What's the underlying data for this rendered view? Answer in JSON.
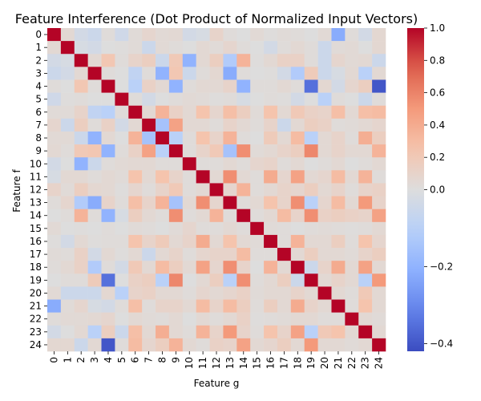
{
  "chart_data": {
    "type": "heatmap",
    "title": "Feature Interference (Dot Product of Normalized Input Vectors)",
    "xlabel": "Feature g",
    "ylabel": "Feature f",
    "x_categories": [
      "0",
      "1",
      "2",
      "3",
      "4",
      "5",
      "6",
      "7",
      "8",
      "9",
      "10",
      "11",
      "12",
      "13",
      "14",
      "15",
      "16",
      "17",
      "18",
      "19",
      "20",
      "21",
      "22",
      "23",
      "24"
    ],
    "y_categories": [
      "0",
      "1",
      "2",
      "3",
      "4",
      "5",
      "6",
      "7",
      "8",
      "9",
      "10",
      "11",
      "12",
      "13",
      "14",
      "15",
      "16",
      "17",
      "18",
      "19",
      "20",
      "21",
      "22",
      "23",
      "24"
    ],
    "colormap": "coolwarm",
    "vmin": -0.42,
    "vmax": 1.0,
    "colorbar_ticks": [
      1.0,
      0.8,
      0.6,
      0.4,
      0.2,
      0.0,
      -0.2,
      -0.4
    ],
    "colorbar_tick_labels": [
      "1.0",
      "0.8",
      "0.6",
      "0.4",
      "0.2",
      "0.0",
      "−0.2",
      "−0.4"
    ],
    "values": [
      [
        1.0,
        0.05,
        -0.03,
        -0.05,
        0.02,
        -0.04,
        0.03,
        0.08,
        0.04,
        0.05,
        -0.03,
        -0.02,
        0.1,
        0.02,
        0.0,
        0.04,
        0.01,
        0.03,
        0.02,
        0.0,
        0.04,
        -0.22,
        0.02,
        -0.03,
        0.06
      ],
      [
        0.05,
        1.0,
        -0.02,
        -0.03,
        0.0,
        0.01,
        0.03,
        -0.05,
        0.04,
        0.02,
        0.0,
        0.05,
        0.03,
        0.08,
        0.02,
        0.0,
        -0.03,
        0.02,
        0.05,
        0.02,
        -0.05,
        0.03,
        0.04,
        0.0,
        0.06
      ],
      [
        -0.03,
        -0.02,
        1.0,
        0.05,
        0.22,
        0.02,
        0.1,
        0.15,
        -0.05,
        0.2,
        -0.2,
        0.05,
        0.15,
        -0.12,
        0.35,
        0.01,
        0.05,
        0.12,
        0.12,
        0.02,
        -0.05,
        0.08,
        0.04,
        0.05,
        -0.05
      ],
      [
        -0.05,
        -0.03,
        0.05,
        1.0,
        0.02,
        0.0,
        -0.08,
        0.02,
        -0.2,
        0.22,
        -0.05,
        0.02,
        0.06,
        -0.22,
        0.02,
        0.0,
        0.01,
        -0.03,
        -0.12,
        0.18,
        -0.05,
        -0.02,
        0.05,
        -0.1,
        0.05
      ],
      [
        0.02,
        0.0,
        0.22,
        0.02,
        1.0,
        0.0,
        -0.1,
        0.12,
        0.05,
        -0.2,
        0.02,
        0.05,
        0.05,
        0.1,
        -0.2,
        0.02,
        0.02,
        0.05,
        0.02,
        -0.35,
        0.06,
        -0.03,
        0.08,
        0.15,
        -0.4
      ],
      [
        -0.04,
        0.01,
        0.02,
        0.0,
        0.0,
        1.0,
        0.02,
        -0.03,
        0.0,
        0.02,
        0.04,
        0.03,
        0.01,
        0.02,
        -0.02,
        0.0,
        0.02,
        0.01,
        -0.03,
        0.0,
        -0.1,
        0.02,
        0.0,
        -0.05,
        0.02
      ],
      [
        0.03,
        0.03,
        0.1,
        -0.08,
        -0.1,
        0.02,
        1.0,
        0.05,
        0.35,
        0.12,
        0.05,
        0.25,
        0.08,
        0.28,
        0.15,
        0.03,
        0.25,
        0.05,
        0.2,
        0.12,
        0.1,
        0.28,
        0.05,
        0.28,
        0.3
      ],
      [
        0.08,
        -0.05,
        0.15,
        0.02,
        0.12,
        -0.03,
        0.05,
        1.0,
        -0.15,
        0.45,
        0.05,
        0.05,
        0.02,
        0.1,
        0.05,
        0.02,
        0.1,
        -0.05,
        0.05,
        0.15,
        0.12,
        0.02,
        0.03,
        0.05,
        0.08
      ],
      [
        0.04,
        0.04,
        -0.05,
        -0.2,
        0.05,
        0.0,
        0.35,
        -0.15,
        1.0,
        -0.1,
        0.02,
        0.25,
        0.1,
        0.35,
        0.02,
        0.0,
        0.18,
        0.05,
        0.3,
        -0.1,
        0.05,
        0.1,
        0.02,
        0.38,
        0.15
      ],
      [
        0.05,
        0.02,
        0.2,
        0.22,
        -0.2,
        0.02,
        0.12,
        0.45,
        -0.1,
        1.0,
        0.02,
        0.1,
        0.2,
        -0.15,
        0.55,
        0.03,
        0.05,
        0.1,
        0.15,
        0.58,
        0.05,
        0.1,
        0.05,
        0.05,
        0.35
      ],
      [
        -0.03,
        0.0,
        -0.2,
        -0.05,
        0.02,
        0.04,
        0.05,
        0.05,
        0.02,
        0.02,
        1.0,
        0.02,
        0.02,
        0.05,
        0.02,
        0.08,
        0.1,
        0.02,
        0.05,
        0.0,
        0.02,
        0.05,
        0.0,
        0.02,
        0.05
      ],
      [
        -0.02,
        0.05,
        0.05,
        0.02,
        0.05,
        0.03,
        0.25,
        0.05,
        0.25,
        0.1,
        0.02,
        1.0,
        0.05,
        0.55,
        0.05,
        0.02,
        0.4,
        0.08,
        0.45,
        0.05,
        0.08,
        0.3,
        0.05,
        0.35,
        0.02
      ],
      [
        0.1,
        0.03,
        0.15,
        0.06,
        0.05,
        0.01,
        0.08,
        0.02,
        0.1,
        0.2,
        0.02,
        0.05,
        1.0,
        0.08,
        0.35,
        0.02,
        0.05,
        0.1,
        0.08,
        0.15,
        0.05,
        0.1,
        0.02,
        0.1,
        0.12
      ],
      [
        0.02,
        0.08,
        -0.12,
        -0.22,
        0.1,
        0.02,
        0.28,
        0.1,
        0.35,
        -0.15,
        0.05,
        0.55,
        0.08,
        1.0,
        0.02,
        0.05,
        0.25,
        0.1,
        0.55,
        -0.1,
        0.08,
        0.3,
        0.05,
        0.5,
        0.1
      ],
      [
        0.0,
        0.02,
        0.35,
        0.02,
        -0.2,
        -0.02,
        0.15,
        0.05,
        0.02,
        0.55,
        0.02,
        0.05,
        0.35,
        0.02,
        1.0,
        0.02,
        0.05,
        0.3,
        0.1,
        0.55,
        0.12,
        0.15,
        0.12,
        0.1,
        0.45
      ],
      [
        0.04,
        0.0,
        0.01,
        0.0,
        0.02,
        0.0,
        0.03,
        0.02,
        0.0,
        0.03,
        0.08,
        0.02,
        0.02,
        0.05,
        0.02,
        1.0,
        0.03,
        0.02,
        0.0,
        0.02,
        0.03,
        0.02,
        0.01,
        0.02,
        0.05
      ],
      [
        0.01,
        -0.03,
        0.05,
        0.01,
        0.02,
        0.02,
        0.25,
        0.1,
        0.18,
        0.05,
        0.1,
        0.4,
        0.05,
        0.25,
        0.05,
        0.03,
        1.0,
        0.02,
        0.35,
        0.05,
        0.05,
        0.15,
        0.02,
        0.25,
        0.08
      ],
      [
        0.03,
        0.02,
        0.12,
        -0.03,
        0.05,
        0.01,
        0.05,
        -0.05,
        0.05,
        0.1,
        0.02,
        0.08,
        0.1,
        0.1,
        0.3,
        0.02,
        0.02,
        1.0,
        0.05,
        0.15,
        0.05,
        0.05,
        0.03,
        0.1,
        0.15
      ],
      [
        0.02,
        0.05,
        0.12,
        -0.12,
        0.02,
        -0.03,
        0.2,
        0.05,
        0.3,
        0.15,
        0.05,
        0.45,
        0.08,
        0.55,
        0.1,
        0.0,
        0.35,
        0.05,
        1.0,
        -0.05,
        0.1,
        0.4,
        0.05,
        0.45,
        0.05
      ],
      [
        0.0,
        0.02,
        0.02,
        0.18,
        -0.35,
        0.0,
        0.12,
        0.15,
        -0.1,
        0.58,
        0.0,
        0.05,
        0.15,
        -0.1,
        0.55,
        0.02,
        0.05,
        0.15,
        -0.05,
        1.0,
        0.05,
        0.1,
        0.05,
        -0.1,
        0.5
      ],
      [
        0.04,
        -0.05,
        -0.05,
        -0.05,
        0.06,
        -0.1,
        0.1,
        0.12,
        0.05,
        0.05,
        0.02,
        0.08,
        0.05,
        0.08,
        0.12,
        0.03,
        0.05,
        0.05,
        0.1,
        0.05,
        1.0,
        0.05,
        0.02,
        0.2,
        0.05
      ],
      [
        -0.22,
        0.03,
        0.08,
        -0.02,
        -0.03,
        0.02,
        0.28,
        0.02,
        0.1,
        0.1,
        0.05,
        0.3,
        0.1,
        0.3,
        0.15,
        0.02,
        0.15,
        0.05,
        0.4,
        0.1,
        0.05,
        1.0,
        0.02,
        0.25,
        0.05
      ],
      [
        0.02,
        0.04,
        0.04,
        0.05,
        0.08,
        0.0,
        0.05,
        0.03,
        0.02,
        0.05,
        0.0,
        0.05,
        0.02,
        0.05,
        0.12,
        0.01,
        0.02,
        0.03,
        0.05,
        0.05,
        0.02,
        0.02,
        1.0,
        0.05,
        0.03
      ],
      [
        -0.03,
        0.0,
        0.05,
        -0.1,
        0.15,
        -0.05,
        0.28,
        0.05,
        0.38,
        0.05,
        0.02,
        0.35,
        0.1,
        0.5,
        0.1,
        0.02,
        0.25,
        0.1,
        0.45,
        -0.1,
        0.2,
        0.25,
        0.05,
        1.0,
        0.05
      ],
      [
        0.06,
        0.06,
        -0.05,
        0.05,
        -0.4,
        0.02,
        0.3,
        0.08,
        0.15,
        0.35,
        0.05,
        0.02,
        0.12,
        0.1,
        0.45,
        0.05,
        0.08,
        0.15,
        0.05,
        0.5,
        0.05,
        0.05,
        0.03,
        0.05,
        1.0
      ]
    ]
  }
}
